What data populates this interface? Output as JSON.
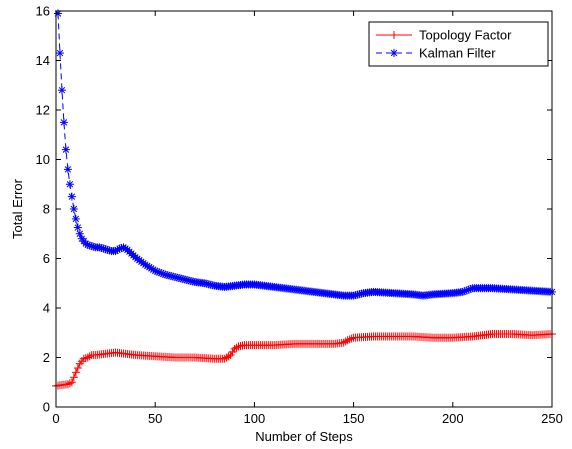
{
  "chart_data": {
    "type": "line",
    "title": "",
    "xlabel": "Number of Steps",
    "ylabel": "Total Error",
    "xlim": [
      0,
      250
    ],
    "ylim": [
      0,
      16
    ],
    "xticks": [
      0,
      50,
      100,
      150,
      200,
      250
    ],
    "yticks": [
      0,
      2,
      4,
      6,
      8,
      10,
      12,
      14,
      16
    ],
    "grid": false,
    "legend_position": "top-right",
    "series": [
      {
        "name": "Topology Factor",
        "color": "#ff0000",
        "marker": "plus",
        "line_style": "solid",
        "x": [
          0,
          2,
          4,
          6,
          8,
          10,
          12,
          14,
          16,
          18,
          20,
          25,
          30,
          35,
          40,
          50,
          60,
          70,
          80,
          85,
          88,
          90,
          92,
          95,
          100,
          110,
          120,
          130,
          140,
          145,
          147,
          150,
          160,
          170,
          180,
          190,
          200,
          210,
          220,
          230,
          240,
          250
        ],
        "y": [
          0.85,
          0.88,
          0.9,
          0.92,
          1.0,
          1.4,
          1.75,
          1.95,
          2.0,
          2.1,
          2.1,
          2.15,
          2.2,
          2.15,
          2.1,
          2.05,
          2.0,
          2.0,
          1.95,
          1.95,
          2.1,
          2.35,
          2.45,
          2.5,
          2.5,
          2.5,
          2.55,
          2.55,
          2.55,
          2.6,
          2.7,
          2.8,
          2.85,
          2.85,
          2.85,
          2.8,
          2.8,
          2.85,
          2.95,
          2.95,
          2.9,
          2.95
        ]
      },
      {
        "name": "Kalman Filter",
        "color": "#0000ff",
        "marker": "asterisk",
        "line_style": "dashed",
        "x": [
          1,
          2,
          3,
          4,
          5,
          6,
          7,
          8,
          9,
          10,
          11,
          12,
          13,
          14,
          15,
          16,
          18,
          20,
          22,
          24,
          26,
          28,
          30,
          32,
          34,
          36,
          38,
          40,
          45,
          50,
          55,
          60,
          65,
          70,
          75,
          80,
          85,
          90,
          95,
          100,
          110,
          120,
          130,
          140,
          145,
          150,
          155,
          160,
          170,
          180,
          185,
          190,
          200,
          205,
          210,
          220,
          230,
          240,
          250
        ],
        "y": [
          15.9,
          14.3,
          12.8,
          11.5,
          10.4,
          9.6,
          9.0,
          8.5,
          8.0,
          7.6,
          7.25,
          7.0,
          6.8,
          6.7,
          6.6,
          6.55,
          6.5,
          6.45,
          6.45,
          6.4,
          6.35,
          6.3,
          6.3,
          6.4,
          6.45,
          6.35,
          6.2,
          6.05,
          5.75,
          5.5,
          5.35,
          5.25,
          5.15,
          5.05,
          5.0,
          4.9,
          4.85,
          4.9,
          4.95,
          4.95,
          4.85,
          4.75,
          4.65,
          4.55,
          4.5,
          4.5,
          4.6,
          4.65,
          4.6,
          4.55,
          4.5,
          4.55,
          4.6,
          4.65,
          4.8,
          4.8,
          4.75,
          4.7,
          4.65
        ]
      }
    ]
  }
}
